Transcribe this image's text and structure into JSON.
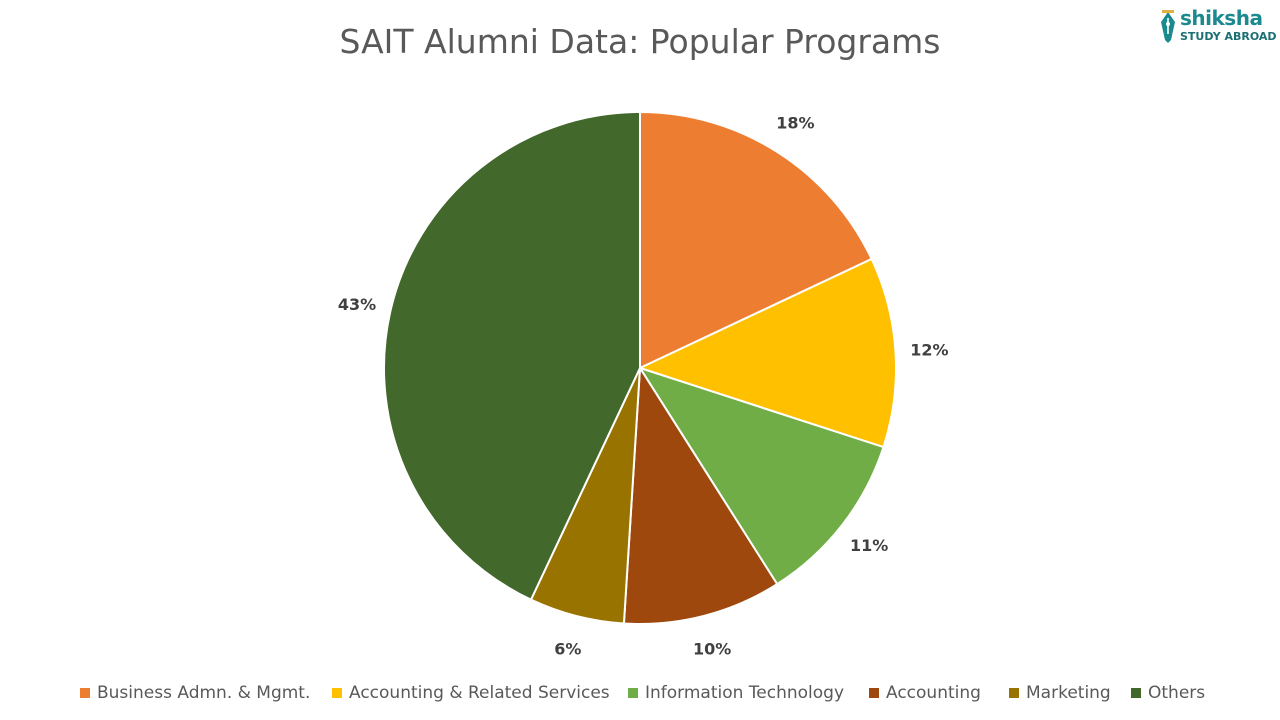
{
  "logo": {
    "name": "shiksha",
    "sub": "STUDY ABROAD",
    "accent": "#1b8a8f"
  },
  "chart_data": {
    "type": "pie",
    "title": "SAIT Alumni Data: Popular Programs",
    "categories": [
      "Business Admn. & Mgmt.",
      "Accounting & Related Services",
      "Information Technology",
      "Accounting",
      "Marketing",
      "Others"
    ],
    "values": [
      18,
      12,
      11,
      10,
      6,
      43
    ],
    "labels": [
      "18%",
      "12%",
      "11%",
      "10%",
      "6%",
      "43%"
    ],
    "colors": [
      "#ed7d31",
      "#ffc000",
      "#70ad47",
      "#9e480e",
      "#997300",
      "#43682b"
    ],
    "legend_position": "bottom"
  }
}
